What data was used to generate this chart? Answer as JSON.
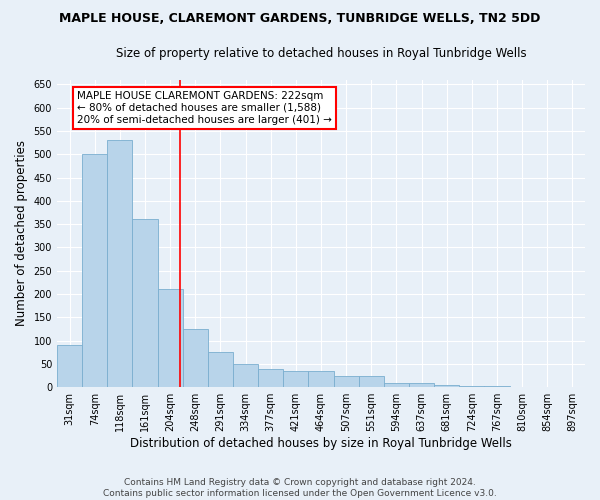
{
  "title": "MAPLE HOUSE, CLAREMONT GARDENS, TUNBRIDGE WELLS, TN2 5DD",
  "subtitle": "Size of property relative to detached houses in Royal Tunbridge Wells",
  "xlabel": "Distribution of detached houses by size in Royal Tunbridge Wells",
  "ylabel": "Number of detached properties",
  "footnote": "Contains HM Land Registry data © Crown copyright and database right 2024.\nContains public sector information licensed under the Open Government Licence v3.0.",
  "categories": [
    "31sqm",
    "74sqm",
    "118sqm",
    "161sqm",
    "204sqm",
    "248sqm",
    "291sqm",
    "334sqm",
    "377sqm",
    "421sqm",
    "464sqm",
    "507sqm",
    "551sqm",
    "594sqm",
    "637sqm",
    "681sqm",
    "724sqm",
    "767sqm",
    "810sqm",
    "854sqm",
    "897sqm"
  ],
  "values": [
    90,
    500,
    530,
    360,
    210,
    125,
    75,
    50,
    40,
    35,
    35,
    25,
    25,
    10,
    10,
    5,
    3,
    3,
    1,
    1,
    1
  ],
  "bar_color": "#b8d4ea",
  "bar_edge_color": "#7aaecf",
  "vline_x": 4.38,
  "vline_color": "red",
  "annotation_text": "MAPLE HOUSE CLAREMONT GARDENS: 222sqm\n← 80% of detached houses are smaller (1,588)\n20% of semi-detached houses are larger (401) →",
  "annotation_box_facecolor": "white",
  "annotation_box_edgecolor": "red",
  "ylim": [
    0,
    660
  ],
  "yticks": [
    0,
    50,
    100,
    150,
    200,
    250,
    300,
    350,
    400,
    450,
    500,
    550,
    600,
    650
  ],
  "background_color": "#e8f0f8",
  "grid_color": "white",
  "title_fontsize": 9,
  "subtitle_fontsize": 8.5,
  "tick_fontsize": 7,
  "label_fontsize": 8.5,
  "footnote_fontsize": 6.5,
  "annotation_fontsize": 7.5
}
